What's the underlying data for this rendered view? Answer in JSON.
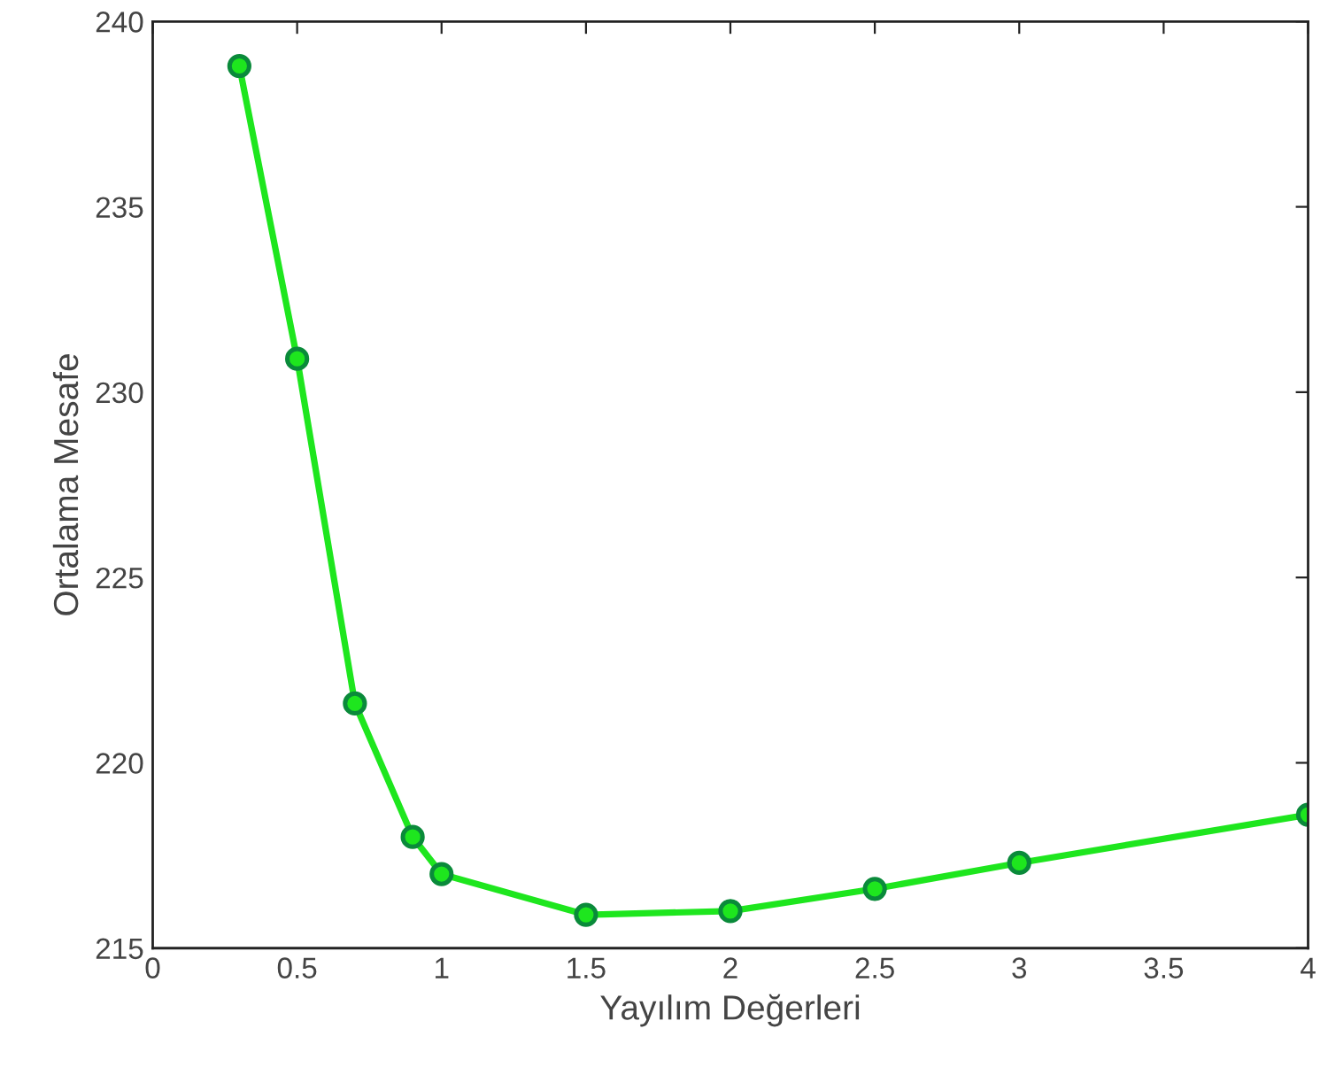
{
  "chart_data": {
    "type": "line",
    "xlabel": "Yayılım Değerleri",
    "ylabel": "Ortalama Mesafe",
    "x": [
      0.3,
      0.5,
      0.7,
      0.9,
      1.0,
      1.5,
      2,
      2.5,
      3,
      4
    ],
    "series": [
      {
        "color": "#1ee61e",
        "values": [
          238.8,
          230.9,
          221.6,
          218.0,
          217.0,
          215.9,
          216.0,
          216.6,
          217.3,
          218.6
        ]
      }
    ],
    "xlim": [
      0,
      4
    ],
    "xticks": [
      0,
      0.5,
      1,
      1.5,
      2,
      2.5,
      3,
      3.5,
      4
    ],
    "ylim": [
      215,
      240
    ],
    "yticks": [
      215,
      220,
      225,
      230,
      235,
      240
    ],
    "grid": false,
    "marker": "circle",
    "line_style": "solid"
  }
}
